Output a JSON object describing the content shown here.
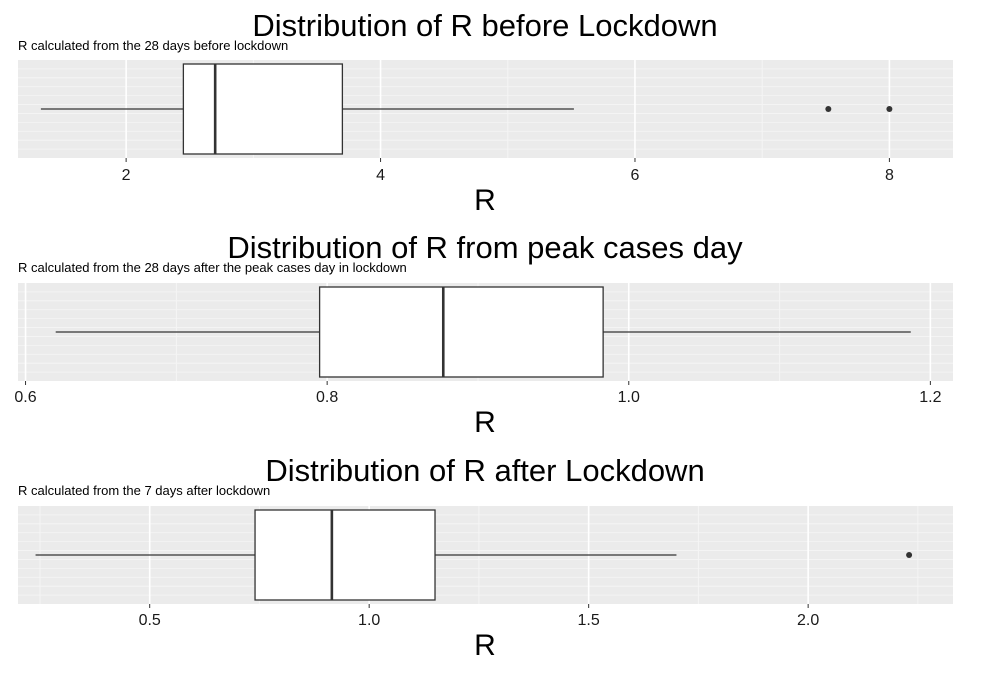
{
  "chart_data": [
    {
      "type": "boxplot",
      "title": "Distribution of R before Lockdown",
      "subtitle": "R calculated from the 28 days before lockdown",
      "xlabel": "R",
      "xlim": [
        1.15,
        8.5
      ],
      "ticks": [
        2,
        4,
        6,
        8
      ],
      "tick_labels": [
        "2",
        "4",
        "6",
        "8"
      ],
      "box": {
        "whisker_low": 1.33,
        "q1": 2.45,
        "median": 2.7,
        "q3": 3.7,
        "whisker_high": 5.52
      },
      "outliers": [
        7.52,
        8.0
      ],
      "grid": true
    },
    {
      "type": "boxplot",
      "title": "Distribution of R from peak cases day",
      "subtitle": "R calculated from the 28 days after the peak cases day in lockdown",
      "xlabel": "R",
      "xlim": [
        0.595,
        1.215
      ],
      "ticks": [
        0.6,
        0.8,
        1.0,
        1.2
      ],
      "tick_labels": [
        "0.6",
        "0.8",
        "1.0",
        "1.2"
      ],
      "box": {
        "whisker_low": 0.62,
        "q1": 0.795,
        "median": 0.877,
        "q3": 0.983,
        "whisker_high": 1.187
      },
      "outliers": [],
      "grid": true
    },
    {
      "type": "boxplot",
      "title": "Distribution of R after Lockdown",
      "subtitle": "R calculated from the 7 days after lockdown",
      "xlabel": "R",
      "xlim": [
        0.2,
        2.33
      ],
      "ticks": [
        0.5,
        1.0,
        1.5,
        2.0
      ],
      "tick_labels": [
        "0.5",
        "1.0",
        "1.5",
        "2.0"
      ],
      "box": {
        "whisker_low": 0.24,
        "q1": 0.74,
        "median": 0.915,
        "q3": 1.15,
        "whisker_high": 1.7
      },
      "outliers": [
        2.23
      ],
      "grid": true
    }
  ],
  "colors": {
    "panel_bg": "#ebebeb",
    "grid_major": "#ffffff",
    "grid_minor": "#f5f5f5",
    "box_fill": "#ffffff",
    "line": "#333333"
  }
}
